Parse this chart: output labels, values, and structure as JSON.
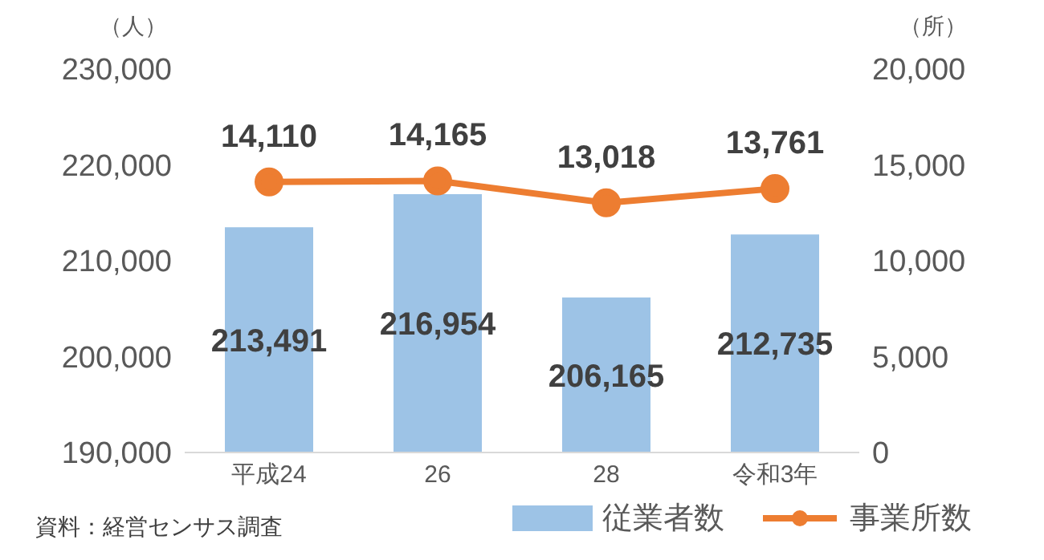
{
  "chart_data": {
    "type": "bar",
    "categories": [
      "平成24",
      "26",
      "28",
      "令和3年"
    ],
    "series": [
      {
        "name": "従業者数",
        "color": "#9dc3e6",
        "values": [
          213491,
          216954,
          206165,
          212735
        ],
        "value_labels": [
          "213,491",
          "216,954",
          "206,165",
          "212,735"
        ]
      },
      {
        "name": "事業所数",
        "type": "line",
        "axis": "y2",
        "color": "#ed7d31",
        "values": [
          14110,
          14165,
          13018,
          13761
        ],
        "value_labels": [
          "14,110",
          "14,165",
          "13,018",
          "13,761"
        ]
      }
    ],
    "ylabel": "（人）",
    "y2label": "（所）",
    "ylim": [
      190000,
      230000
    ],
    "yticks": [
      {
        "value": 190000,
        "label": "190,000"
      },
      {
        "value": 200000,
        "label": "200,000"
      },
      {
        "value": 210000,
        "label": "210,000"
      },
      {
        "value": 220000,
        "label": "220,000"
      },
      {
        "value": 230000,
        "label": "230,000"
      }
    ],
    "y2lim": [
      0,
      20000
    ],
    "y2ticks": [
      0,
      {
        "value": 5000,
        "label": "5,000"
      },
      {
        "value": 10000,
        "label": "10,000"
      },
      {
        "value": 15000,
        "label": "15,000"
      },
      {
        "value": 20000,
        "label": "20,000"
      }
    ],
    "marker": "circle",
    "legend": "bottom",
    "grid": false,
    "annotations": [
      "資料：経営センサス調査"
    ]
  }
}
